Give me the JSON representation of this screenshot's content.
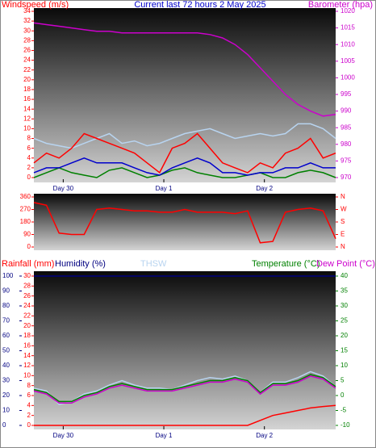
{
  "chart_data": [
    {
      "type": "line",
      "title": "Current last 72 hours 2 May 2025",
      "y_label": "Windspeed (m/s)",
      "y2_label": "Barometer (hpa)",
      "x": [
        0,
        3,
        6,
        9,
        12,
        15,
        18,
        21,
        24,
        27,
        30,
        33,
        36,
        39,
        42,
        45,
        48,
        51,
        54,
        57,
        60,
        63,
        66,
        69,
        72
      ],
      "xlim": [
        0,
        72
      ],
      "xticks": [
        {
          "value": 7,
          "label": "Day 30"
        },
        {
          "value": 31,
          "label": "Day 1"
        },
        {
          "value": 55,
          "label": "Day 2"
        }
      ],
      "ylim": [
        0,
        34
      ],
      "yticks": [
        0,
        2,
        4,
        6,
        8,
        10,
        12,
        14,
        16,
        18,
        20,
        22,
        24,
        26,
        28,
        30,
        32,
        34
      ],
      "ycolor": "#ff0000",
      "y2lim": [
        970,
        1020
      ],
      "y2ticks": [
        970,
        975,
        980,
        985,
        990,
        995,
        1000,
        1005,
        1010,
        1015,
        1020
      ],
      "y2color": "#cc00cc",
      "series": [
        {
          "color": "#b8d4f0",
          "values": [
            8,
            7,
            6.5,
            6,
            7,
            8,
            9,
            7,
            7.5,
            6.5,
            7,
            8,
            9,
            9.5,
            10,
            9,
            8,
            8.5,
            9,
            8.5,
            9,
            11,
            11,
            10,
            8
          ]
        },
        {
          "color": "#ff0000",
          "values": [
            3,
            5,
            4,
            6,
            9,
            8,
            7,
            6,
            5,
            3,
            1,
            6,
            7,
            9,
            6,
            3,
            2,
            1,
            3,
            2,
            5,
            6,
            8,
            4,
            5
          ]
        },
        {
          "color": "#008000",
          "values": [
            0,
            1,
            2,
            1,
            0.5,
            0,
            1.5,
            2,
            1,
            0,
            0.5,
            1.5,
            2,
            1,
            0.5,
            0,
            0,
            0.5,
            1,
            0,
            0,
            1,
            1.5,
            1,
            0
          ]
        },
        {
          "color": "#0000cc",
          "values": [
            1,
            2,
            2,
            3,
            4,
            3,
            3,
            3,
            2,
            1,
            0.5,
            2,
            3,
            4,
            3,
            1,
            1,
            0.5,
            1,
            1,
            2,
            2,
            3,
            2,
            2
          ]
        },
        {
          "color": "#cc00cc",
          "axis": "y2",
          "values": [
            1016.5,
            1016,
            1015.5,
            1015,
            1014.5,
            1014,
            1014,
            1013.5,
            1013.5,
            1013.5,
            1013.5,
            1013.5,
            1013.5,
            1013.5,
            1013,
            1012,
            1010,
            1007,
            1003,
            999,
            995,
            992,
            990,
            988.5,
            989
          ]
        }
      ]
    },
    {
      "type": "line",
      "x": [
        0,
        3,
        6,
        9,
        12,
        15,
        18,
        21,
        24,
        27,
        30,
        33,
        36,
        39,
        42,
        45,
        48,
        51,
        54,
        57,
        60,
        63,
        66,
        69,
        72
      ],
      "xlim": [
        0,
        72
      ],
      "ylim": [
        0,
        360
      ],
      "yticks": [
        0,
        90,
        180,
        270,
        360
      ],
      "ycolor": "#ff0000",
      "y2lim": [
        0,
        360
      ],
      "y2ticks": [
        {
          "value": 360,
          "label": "N"
        },
        {
          "value": 270,
          "label": "W"
        },
        {
          "value": 180,
          "label": "S"
        },
        {
          "value": 90,
          "label": "E"
        },
        {
          "value": 0,
          "label": "N"
        }
      ],
      "y2color": "#ff0000",
      "series": [
        {
          "color": "#ff0000",
          "values": [
            320,
            300,
            100,
            90,
            90,
            270,
            280,
            270,
            260,
            260,
            250,
            250,
            270,
            250,
            250,
            250,
            240,
            260,
            30,
            40,
            250,
            270,
            280,
            260,
            60
          ]
        }
      ]
    },
    {
      "type": "line",
      "x": [
        0,
        3,
        6,
        9,
        12,
        15,
        18,
        21,
        24,
        27,
        30,
        33,
        36,
        39,
        42,
        45,
        48,
        51,
        54,
        57,
        60,
        63,
        66,
        69,
        72
      ],
      "xlim": [
        0,
        72
      ],
      "xticks": [
        {
          "value": 7,
          "label": "Day 30"
        },
        {
          "value": 31,
          "label": "Day 1"
        },
        {
          "value": 55,
          "label": "Day 2"
        }
      ],
      "ylim": [
        0,
        30
      ],
      "yticks": [
        0,
        2,
        4,
        6,
        8,
        10,
        12,
        14,
        16,
        18,
        20,
        22,
        24,
        26,
        28,
        30
      ],
      "ycolor": "#ff0000",
      "y2lim": [
        -10,
        40
      ],
      "y2ticks": [
        -10,
        -5,
        0,
        5,
        10,
        15,
        20,
        25,
        30,
        35,
        40
      ],
      "y2color": "#008000",
      "y3lim": [
        0,
        100
      ],
      "y3ticks": [
        0,
        10,
        20,
        30,
        40,
        50,
        60,
        70,
        80,
        90,
        100
      ],
      "y3color": "#000080",
      "series": [
        {
          "name": "Rainfall (mm)",
          "color": "#ff0000",
          "values": [
            0,
            0,
            0,
            0,
            0,
            0,
            0,
            0,
            0,
            0,
            0,
            0,
            0,
            0,
            0,
            0,
            0,
            0,
            1,
            2,
            2.5,
            3,
            3.5,
            3.8,
            4
          ]
        },
        {
          "name": "Humidity (%)",
          "color": "#000080",
          "axis": "y3",
          "values": [
            100,
            100,
            100,
            100,
            100,
            100,
            100,
            100,
            100,
            100,
            100,
            100,
            100,
            100,
            100,
            100,
            100,
            100,
            100,
            100,
            100,
            100,
            100,
            100,
            100
          ]
        },
        {
          "name": "THSW",
          "color": "#b8d4f0",
          "axis": "y2",
          "values": [
            2.5,
            1.5,
            -3,
            -2,
            0.5,
            1.5,
            3.5,
            5,
            3.5,
            2.5,
            2.5,
            2,
            3.5,
            5,
            6,
            5.5,
            6.5,
            5,
            1,
            4.5,
            4.5,
            6,
            8,
            6.5,
            3
          ]
        },
        {
          "name": "Temperature (°C)",
          "color": "#008000",
          "axis": "y2",
          "values": [
            2,
            1,
            -2,
            -2,
            0,
            1,
            3,
            4,
            3,
            2,
            2,
            2,
            3,
            4,
            5,
            5,
            6,
            5,
            1,
            4,
            4,
            5,
            7,
            6,
            3
          ]
        },
        {
          "name": "Dew Point (°C)",
          "color": "#cc00cc",
          "axis": "y2",
          "values": [
            1.5,
            0.5,
            -2.5,
            -2.5,
            -0.5,
            0.5,
            2.5,
            3.5,
            2.5,
            1.5,
            1.5,
            1.5,
            2.5,
            3.5,
            4.5,
            4.5,
            5.5,
            4.5,
            0.5,
            3.5,
            3.5,
            4.5,
            6.5,
            5.5,
            2.5
          ]
        }
      ]
    }
  ]
}
